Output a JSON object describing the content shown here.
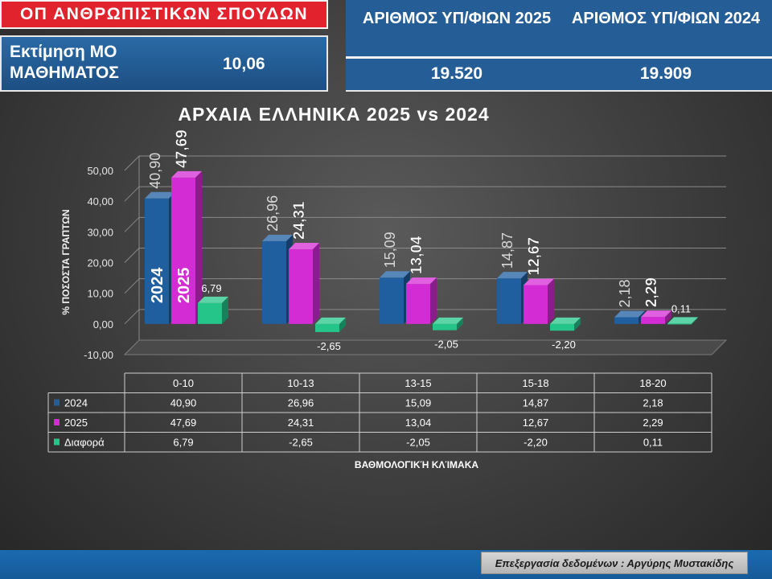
{
  "header": {
    "program_label": "ΟΠ ΑΝΘΡΩΠΙΣΤΙΚΩΝ ΣΠΟΥΔΩΝ",
    "estimate_label": "Εκτίμηση ΜΟ ΜΑΘΗΜΑΤΟΣ",
    "estimate_value": "10,06",
    "count_2025_label": "ΑΡΙΘΜΟΣ ΥΠ/ΦΙΩΝ 2025",
    "count_2024_label": "ΑΡΙΘΜΟΣ ΥΠ/ΦΙΩΝ 2024",
    "count_2025_value": "19.520",
    "count_2024_value": "19.909"
  },
  "footer": {
    "credit": "Επεξεργασία δεδομένων : Αργύρης Μυστακίδης"
  },
  "chart_data": {
    "type": "bar",
    "title": "ΑΡΧΑΙΑ ΕΛΛΗΝΙΚΑ 2025 vs 2024",
    "xlabel": "ΒΑΘΜΟΛΟΓΙΚΉ ΚΛΊΜΑΚΑ",
    "ylabel": "% ΠΟΣΟΣΤΑ ΓΡΑΠΤΩΝ",
    "ylim": [
      -10,
      50
    ],
    "yticks": [
      "-10,00",
      "0,00",
      "10,00",
      "20,00",
      "30,00",
      "40,00",
      "50,00"
    ],
    "categories": [
      "0-10",
      "10-13",
      "13-15",
      "15-18",
      "18-20"
    ],
    "series": [
      {
        "name": "2024",
        "color": "#1f5fa0",
        "values": [
          40.9,
          26.96,
          15.09,
          14.87,
          2.18
        ],
        "labels": [
          "40,90",
          "26,96",
          "15,09",
          "14,87",
          "2,18"
        ]
      },
      {
        "name": "2025",
        "color": "#d42cd4",
        "values": [
          47.69,
          24.31,
          13.04,
          12.67,
          2.29
        ],
        "labels": [
          "47,69",
          "24,31",
          "13,04",
          "12,67",
          "2,29"
        ]
      },
      {
        "name": "Διαφορά",
        "color": "#25c58a",
        "values": [
          6.79,
          -2.65,
          -2.05,
          -2.2,
          0.11
        ],
        "labels": [
          "6,79",
          "-2,65",
          "-2,05",
          "-2,20",
          "0,11"
        ]
      }
    ],
    "bar_inner_labels": [
      "2024",
      "2025"
    ],
    "legend": "data-table",
    "grid": true
  }
}
